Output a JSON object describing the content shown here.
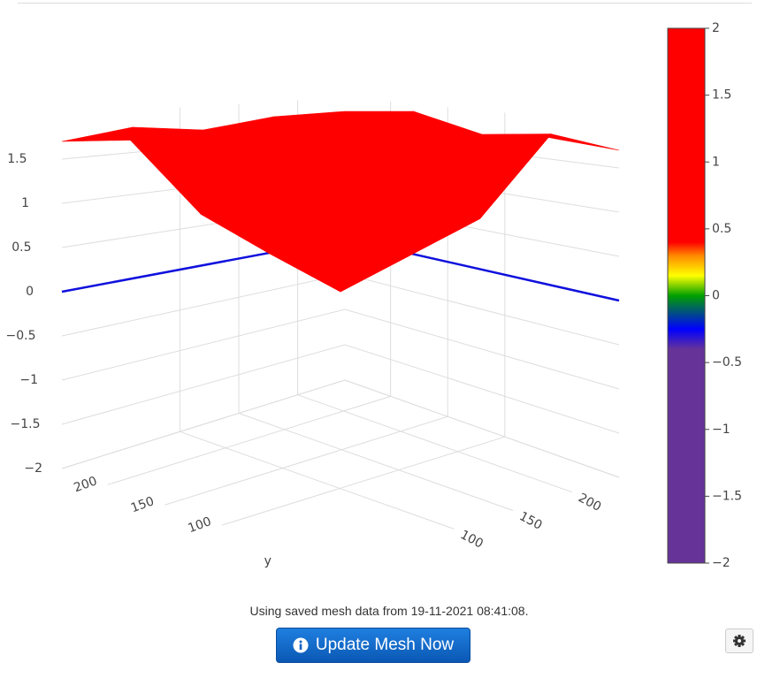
{
  "chart_data": {
    "type": "surface",
    "x": [
      0,
      60,
      120,
      180,
      240
    ],
    "y": [
      0,
      60,
      120,
      180,
      240
    ],
    "z": [
      [
        1.8,
        1.7,
        1.6,
        1.8,
        1.7
      ],
      [
        1.7,
        0.9,
        0.6,
        0.9,
        1.8
      ],
      [
        1.6,
        0.6,
        0.05,
        0.6,
        1.7
      ],
      [
        1.9,
        0.9,
        0.5,
        1.0,
        1.8
      ],
      [
        1.7,
        1.8,
        1.7,
        1.9,
        1.8
      ]
    ],
    "xlim": [
      0,
      240
    ],
    "ylim": [
      0,
      240
    ],
    "zlim": [
      -2,
      2
    ],
    "xticks": [
      100,
      150,
      200
    ],
    "yticks": [
      100,
      150,
      200
    ],
    "zticks": [
      {
        "value": -2,
        "label": "−2"
      },
      {
        "value": -1.5,
        "label": "−1.5"
      },
      {
        "value": -1,
        "label": "−1"
      },
      {
        "value": -0.5,
        "label": "−0.5"
      },
      0,
      0.5,
      1,
      1.5
    ],
    "ytitle": "y",
    "colorscale": [
      [
        -2,
        "#663399"
      ],
      [
        -0.4,
        "#663399"
      ],
      [
        -0.25,
        "#0000ff"
      ],
      [
        0,
        "#00a000"
      ],
      [
        0.15,
        "#ffff00"
      ],
      [
        0.3,
        "#ff8800"
      ],
      [
        0.4,
        "#ff0000"
      ],
      [
        2,
        "#ff0000"
      ]
    ],
    "colorbar_lim": [
      -2,
      2
    ],
    "colorbar_ticks": [
      {
        "value": -2,
        "label": "−2"
      },
      {
        "value": -1.5,
        "label": "−1.5"
      },
      {
        "value": -1,
        "label": "−1"
      },
      {
        "value": -0.5,
        "label": "−0.5"
      },
      0,
      0.5,
      1,
      1.5,
      2
    ]
  },
  "status": "Using saved mesh data from 19-11-2021 08:41:08.",
  "button": "Update Mesh Now"
}
